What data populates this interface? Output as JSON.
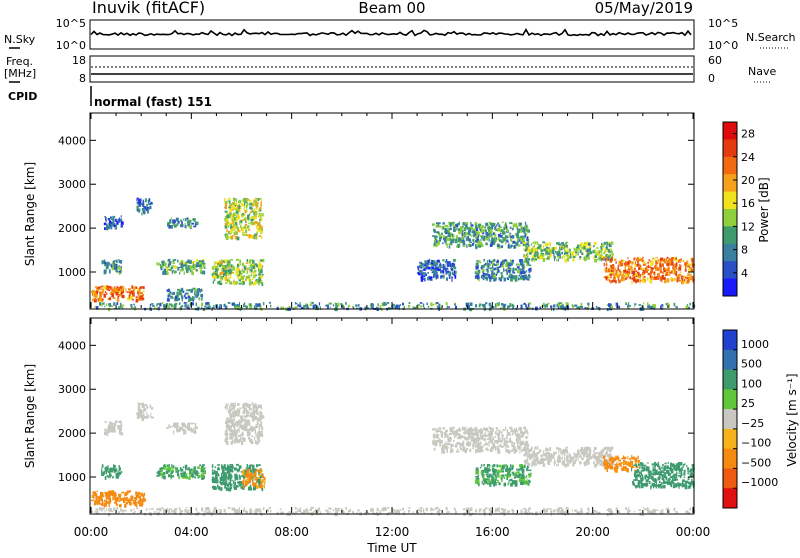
{
  "header": {
    "station": "Inuvik (fitACF)",
    "beam": "Beam 00",
    "date": "05/May/2019"
  },
  "nsky_panel": {
    "left_label": "N.Sky",
    "left_ticks": [
      "10^5",
      "10^0"
    ],
    "right_label": "N.Search",
    "right_ticks": [
      "10^5",
      "10^0"
    ]
  },
  "freq_panel": {
    "left_label_line1": "Freq.",
    "left_label_line2": "[MHz]",
    "left_ticks": [
      "18",
      "8"
    ],
    "right_label": "Nave",
    "right_ticks": [
      "60",
      "0"
    ]
  },
  "cpid": {
    "label": "CPID",
    "program": "normal (fast) 151"
  },
  "colors": {
    "power_scale": [
      "#1a1aff",
      "#2a50c8",
      "#3a7fa0",
      "#3d9b6e",
      "#8fcf3c",
      "#f2e21c",
      "#f7a11a",
      "#f26a10",
      "#e53a10",
      "#dd0b0b"
    ],
    "velocity_scale": [
      "#2040d0",
      "#3370b0",
      "#3d9b6e",
      "#5ec83a",
      "#c8c8c0",
      "#f5b21a",
      "#f48a12",
      "#ee5a10",
      "#e01010"
    ]
  },
  "chart_data": [
    {
      "type": "heatmap",
      "panel": "power",
      "ylabel": "Slant Range [km]",
      "ylim": [
        180,
        4600
      ],
      "yticks": [
        "1000",
        "2000",
        "3000",
        "4000"
      ],
      "ytick_values": [
        1000,
        2000,
        3000,
        4000
      ],
      "xlim_hours": [
        0,
        24
      ],
      "colorbar_label": "Power [dB]",
      "colorbar_ticks": [
        "4",
        "8",
        "12",
        "16",
        "20",
        "24",
        "28"
      ],
      "colorbar_tick_values": [
        4,
        8,
        12,
        16,
        20,
        24,
        28
      ],
      "colorbar_range": [
        0,
        30
      ],
      "regions": [
        {
          "t0": 0.0,
          "t1": 2.1,
          "r0": 380,
          "r1": 700,
          "value": 22
        },
        {
          "t0": 0.4,
          "t1": 1.2,
          "r0": 1000,
          "r1": 1300,
          "value": 10
        },
        {
          "t0": 0.5,
          "t1": 1.2,
          "r0": 2000,
          "r1": 2300,
          "value": 6
        },
        {
          "t0": 1.8,
          "t1": 2.4,
          "r0": 2350,
          "r1": 2700,
          "value": 7
        },
        {
          "t0": 3.0,
          "t1": 4.2,
          "r0": 2050,
          "r1": 2250,
          "value": 9
        },
        {
          "t0": 2.6,
          "t1": 4.5,
          "r0": 1000,
          "r1": 1300,
          "value": 11
        },
        {
          "t0": 3.0,
          "t1": 4.4,
          "r0": 400,
          "r1": 650,
          "value": 8
        },
        {
          "t0": 4.8,
          "t1": 6.8,
          "r0": 750,
          "r1": 1300,
          "value": 14
        },
        {
          "t0": 5.3,
          "t1": 6.8,
          "r0": 1800,
          "r1": 2700,
          "value": 15
        },
        {
          "t0": 13.6,
          "t1": 17.4,
          "r0": 1600,
          "r1": 2150,
          "value": 10
        },
        {
          "t0": 13.0,
          "t1": 14.5,
          "r0": 850,
          "r1": 1300,
          "value": 6
        },
        {
          "t0": 15.3,
          "t1": 17.5,
          "r0": 850,
          "r1": 1300,
          "value": 8
        },
        {
          "t0": 17.2,
          "t1": 20.8,
          "r0": 1300,
          "r1": 1700,
          "value": 13
        },
        {
          "t0": 20.4,
          "t1": 24.0,
          "r0": 800,
          "r1": 1350,
          "value": 22
        },
        {
          "t0": 0.0,
          "t1": 24.0,
          "r0": 180,
          "r1": 320,
          "value": 9
        }
      ]
    },
    {
      "type": "heatmap",
      "panel": "velocity",
      "ylabel": "Slant Range [km]",
      "ylim": [
        180,
        4600
      ],
      "yticks": [
        "1000",
        "2000",
        "3000",
        "4000"
      ],
      "ytick_values": [
        1000,
        2000,
        3000,
        4000
      ],
      "xlabel": "Time UT",
      "xticks": [
        "00:00",
        "04:00",
        "08:00",
        "12:00",
        "16:00",
        "20:00",
        "00:00"
      ],
      "xtick_hours": [
        0,
        4,
        8,
        12,
        16,
        20,
        24
      ],
      "xlim_hours": [
        0,
        24
      ],
      "colorbar_label": "Velocity [m s⁻¹]",
      "colorbar_ticks": [
        "1000",
        "500",
        "100",
        "25",
        "−25",
        "−100",
        "−500",
        "−1000"
      ],
      "regions": [
        {
          "t0": 0.0,
          "t1": 2.1,
          "r0": 380,
          "r1": 700,
          "value": -300
        },
        {
          "t0": 0.5,
          "t1": 1.2,
          "r0": 2000,
          "r1": 2300,
          "value": 0
        },
        {
          "t0": 1.8,
          "t1": 2.4,
          "r0": 2350,
          "r1": 2700,
          "value": 0
        },
        {
          "t0": 3.0,
          "t1": 4.2,
          "r0": 2050,
          "r1": 2250,
          "value": 0
        },
        {
          "t0": 0.4,
          "t1": 1.2,
          "r0": 1000,
          "r1": 1300,
          "value": 200
        },
        {
          "t0": 2.6,
          "t1": 4.5,
          "r0": 1000,
          "r1": 1300,
          "value": 150
        },
        {
          "t0": 4.8,
          "t1": 6.8,
          "r0": 750,
          "r1": 1300,
          "value": 250
        },
        {
          "t0": 6.0,
          "t1": 6.9,
          "r0": 800,
          "r1": 1200,
          "value": -150
        },
        {
          "t0": 5.3,
          "t1": 6.8,
          "r0": 1800,
          "r1": 2700,
          "value": 0
        },
        {
          "t0": 13.6,
          "t1": 17.4,
          "r0": 1600,
          "r1": 2150,
          "value": 0
        },
        {
          "t0": 15.3,
          "t1": 17.5,
          "r0": 850,
          "r1": 1300,
          "value": 150
        },
        {
          "t0": 17.2,
          "t1": 20.8,
          "r0": 1300,
          "r1": 1700,
          "value": 0
        },
        {
          "t0": 20.4,
          "t1": 21.8,
          "r0": 1150,
          "r1": 1500,
          "value": -200
        },
        {
          "t0": 21.5,
          "t1": 24.0,
          "r0": 800,
          "r1": 1350,
          "value": 300
        },
        {
          "t0": 0.0,
          "t1": 24.0,
          "r0": 180,
          "r1": 320,
          "value": 0
        }
      ]
    }
  ]
}
